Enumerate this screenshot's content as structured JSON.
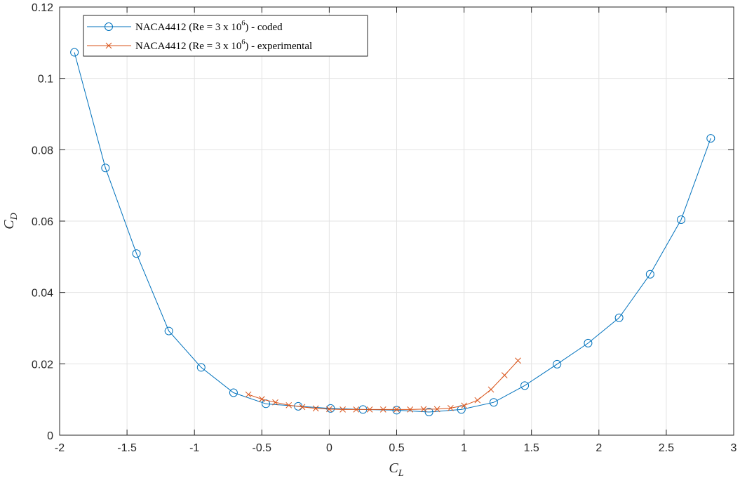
{
  "chart_data": {
    "type": "line",
    "title": "",
    "xlabel": {
      "main": "C",
      "sub": "L"
    },
    "ylabel": {
      "main": "C",
      "sub": "D"
    },
    "xlim": [
      -2,
      3
    ],
    "ylim": [
      0,
      0.12
    ],
    "xticks": [
      -2,
      -1.5,
      -1,
      -0.5,
      0,
      0.5,
      1,
      1.5,
      2,
      2.5,
      3
    ],
    "xtick_labels": [
      "-2",
      "-1.5",
      "-1",
      "-0.5",
      "0",
      "0.5",
      "1",
      "1.5",
      "2",
      "2.5",
      "3"
    ],
    "yticks": [
      0,
      0.02,
      0.04,
      0.06,
      0.08,
      0.1,
      0.12
    ],
    "ytick_labels": [
      "0",
      "0.02",
      "0.04",
      "0.06",
      "0.08",
      "0.1",
      "0.12"
    ],
    "grid": true,
    "legend_position": "top-left",
    "series": [
      {
        "name": "NACA4412 (Re = 3 x 10^6) - coded",
        "legend": {
          "pre": "NACA4412 (Re = 3 x 10",
          "sup": "6",
          "post": ") - coded"
        },
        "color": "#0072BD",
        "marker": "circle",
        "x": [
          -1.89,
          -1.66,
          -1.43,
          -1.19,
          -0.95,
          -0.71,
          -0.47,
          -0.23,
          0.01,
          0.25,
          0.5,
          0.74,
          0.98,
          1.22,
          1.45,
          1.69,
          1.92,
          2.15,
          2.38,
          2.61,
          2.83
        ],
        "y": [
          0.1073,
          0.0749,
          0.0509,
          0.0292,
          0.019,
          0.0119,
          0.0088,
          0.0081,
          0.0075,
          0.0072,
          0.007,
          0.0065,
          0.0072,
          0.0092,
          0.0139,
          0.0199,
          0.0258,
          0.0329,
          0.0451,
          0.0604,
          0.0832
        ]
      },
      {
        "name": "NACA4412 (Re = 3 x 10^6) - experimental",
        "legend": {
          "pre": "NACA4412 (Re = 3 x 10",
          "sup": "6",
          "post": ") - experimental"
        },
        "color": "#D95319",
        "marker": "x",
        "x": [
          -0.6,
          -0.5,
          -0.4,
          -0.3,
          -0.2,
          -0.1,
          0,
          0.1,
          0.2,
          0.3,
          0.4,
          0.5,
          0.6,
          0.7,
          0.8,
          0.9,
          1.0,
          1.1,
          1.2,
          1.3,
          1.4
        ],
        "y": [
          0.0114,
          0.0101,
          0.0092,
          0.0084,
          0.0079,
          0.0075,
          0.0073,
          0.0072,
          0.0072,
          0.0072,
          0.0072,
          0.0072,
          0.0072,
          0.0073,
          0.0073,
          0.0076,
          0.0083,
          0.0098,
          0.0128,
          0.0168,
          0.0209
        ]
      }
    ]
  }
}
